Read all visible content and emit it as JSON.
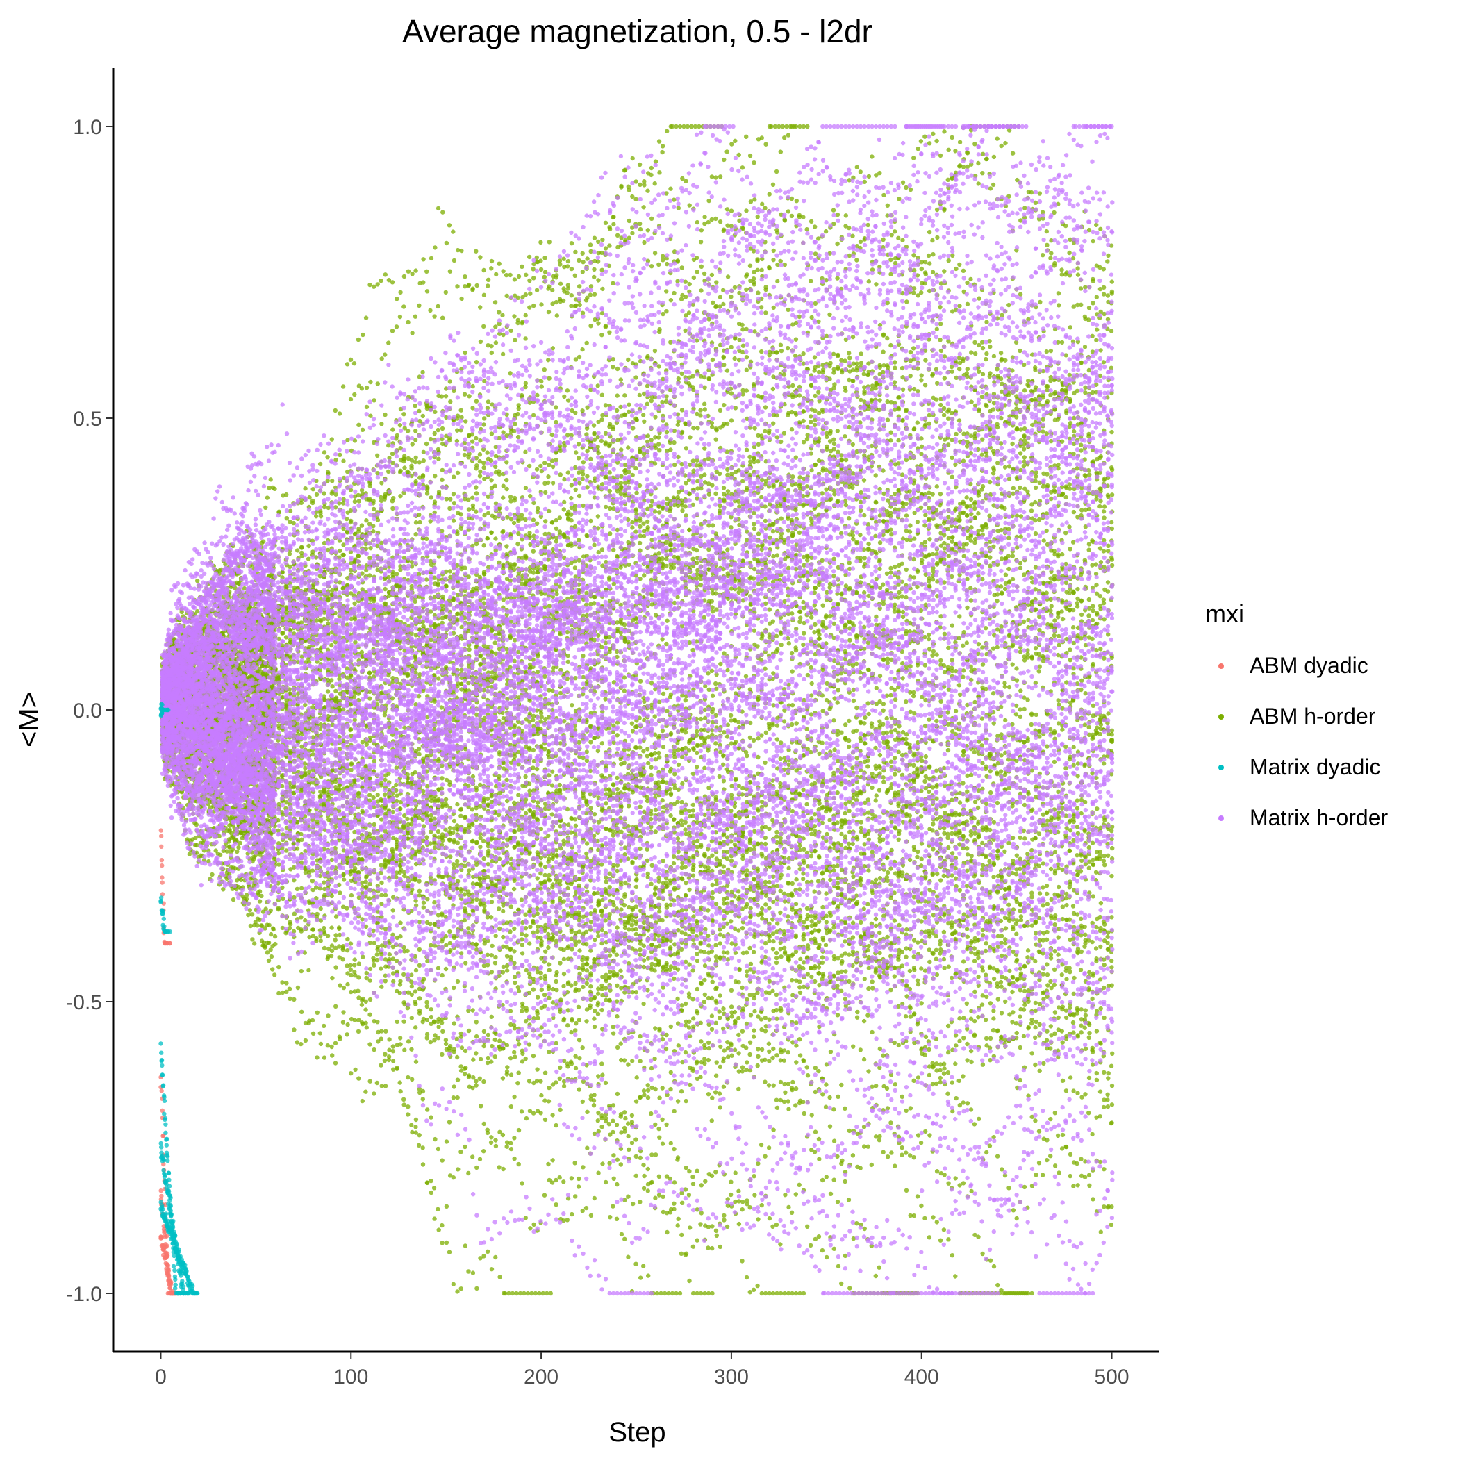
{
  "chart_data": {
    "type": "scatter",
    "title": "Average magnetization, 0.5 - l2dr",
    "xlabel": "Step",
    "ylabel": "<M>",
    "xlim": [
      -25,
      525
    ],
    "ylim": [
      -1.1,
      1.1
    ],
    "x_ticks": [
      0,
      100,
      200,
      300,
      400,
      500
    ],
    "x_tick_labels": [
      "0",
      "100",
      "200",
      "300",
      "400",
      "500"
    ],
    "y_ticks": [
      -1.0,
      -0.5,
      0.0,
      0.5,
      1.0
    ],
    "y_tick_labels": [
      "-1.0",
      "-0.5",
      "0.0",
      "0.5",
      "1.0"
    ],
    "grid": false,
    "legend_position": "right",
    "legend_title": "mxi",
    "series": [
      {
        "name": "ABM dyadic",
        "color": "#F8766D",
        "trajectories": [
          {
            "start": -0.2,
            "steps": 2,
            "end": -0.4
          },
          {
            "start": -0.63,
            "steps": 4,
            "end": -1.0
          },
          {
            "start": -0.82,
            "steps": 5,
            "end": -1.0
          },
          {
            "start": -0.9,
            "steps": 6,
            "end": -1.0
          }
        ]
      },
      {
        "name": "ABM h-order",
        "color": "#7CAE00",
        "trajectories_summary": "random-walk runs from 0.0; absorbed at +1.0 or -1.0 between about step 65 and 490, surviving runs end near -0.5 to 0.45 at step 500"
      },
      {
        "name": "Matrix dyadic",
        "color": "#00BFC4",
        "trajectories": [
          {
            "start": 0.0,
            "steps": 1,
            "end": 0.0
          },
          {
            "start": -0.32,
            "steps": 2,
            "end": -0.38
          },
          {
            "start": -0.58,
            "steps": 8,
            "end": -1.0
          },
          {
            "start": -0.75,
            "steps": 12,
            "end": -1.0
          },
          {
            "start": -0.85,
            "steps": 17,
            "end": -1.0
          }
        ]
      },
      {
        "name": "Matrix h-order",
        "color": "#C77CFF",
        "trajectories_summary": "random-walk runs from 0.0; absorbed at +/-1.0 between about step 80 and 480, surviving runs spread from -0.98 to 0.9 at step 500"
      }
    ]
  }
}
